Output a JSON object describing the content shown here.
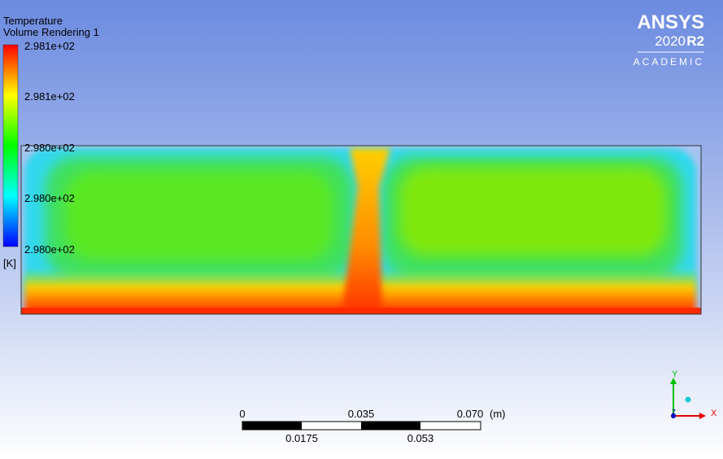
{
  "legend": {
    "title": "Temperature",
    "subtitle": "Volume Rendering 1",
    "labels": [
      "2.981e+02",
      "2.981e+02",
      "2.980e+02",
      "2.980e+02",
      "2.980e+02"
    ],
    "unit": "[K]"
  },
  "logo": {
    "brand": "ANSYS",
    "version": "2020",
    "release": "R2",
    "edition": "ACADEMIC"
  },
  "scale_bar": {
    "top_labels": [
      "0",
      "0.035",
      "0.070"
    ],
    "unit": "(m)",
    "bottom_labels": [
      "0.0175",
      "0.053"
    ]
  },
  "triad": {
    "y": "Y",
    "x": "X",
    "z": "Z"
  }
}
